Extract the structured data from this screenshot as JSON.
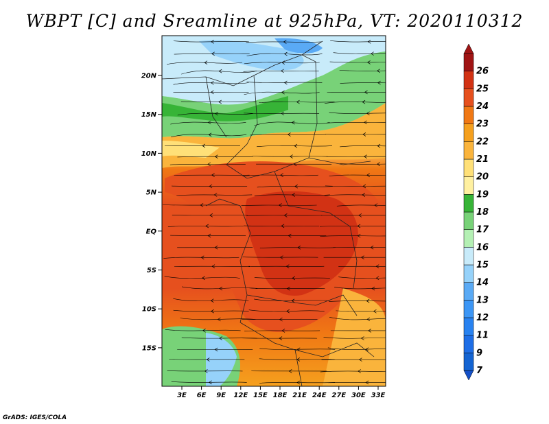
{
  "title": "WBPT [C] and Sreamline at 925hPa, VT: 2020110312",
  "credit": "GrADS: IGES/COLA",
  "map": {
    "lat_ticks": [
      "20N",
      "15N",
      "10N",
      "5N",
      "EQ",
      "5S",
      "10S",
      "15S"
    ],
    "lon_ticks": [
      "3E",
      "6E",
      "9E",
      "12E",
      "15E",
      "18E",
      "21E",
      "24E",
      "27E",
      "30E",
      "33E"
    ]
  },
  "colorbar": {
    "levels": [
      {
        "label": "7",
        "color": "#1464d2"
      },
      {
        "label": "9",
        "color": "#1e6ee6"
      },
      {
        "label": "11",
        "color": "#2882f0"
      },
      {
        "label": "12",
        "color": "#3c96f5"
      },
      {
        "label": "13",
        "color": "#5aaaf5"
      },
      {
        "label": "14",
        "color": "#96d2fa"
      },
      {
        "label": "15",
        "color": "#c8ebfa"
      },
      {
        "label": "16",
        "color": "#b4f0b4"
      },
      {
        "label": "17",
        "color": "#78d278"
      },
      {
        "label": "18",
        "color": "#37b437"
      },
      {
        "label": "19",
        "color": "#fff0a0"
      },
      {
        "label": "20",
        "color": "#ffe078"
      },
      {
        "label": "21",
        "color": "#fab43c"
      },
      {
        "label": "22",
        "color": "#f5a01e"
      },
      {
        "label": "23",
        "color": "#f07814"
      },
      {
        "label": "24",
        "color": "#e6501e"
      },
      {
        "label": "25",
        "color": "#d23214"
      },
      {
        "label": "26",
        "color": "#a01414"
      }
    ],
    "under_color": "#1450c8",
    "over_color": "#a01414"
  }
}
